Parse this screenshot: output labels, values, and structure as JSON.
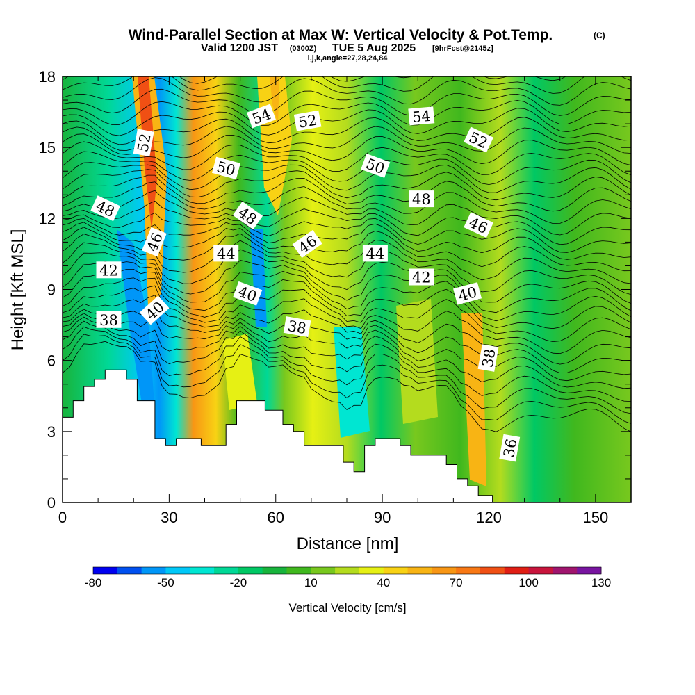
{
  "chart_data": {
    "type": "heatmap",
    "title": "Wind-Parallel Section at Max W: Vertical Velocity & Pot.Temp.",
    "title_units": "(C)",
    "subtitle_valid": "Valid 1200 JST",
    "subtitle_utc": "(0300Z)",
    "subtitle_date": "TUE 5 Aug 2025",
    "subtitle_fcst": "[9hrFcst@2145z]",
    "subtitle_indices": "i,j,k,angle=27,28,24,84",
    "xlabel": "Distance [nm]",
    "ylabel": "Height [Kft MSL]",
    "xlim": [
      0,
      160
    ],
    "ylim": [
      0,
      18
    ],
    "x_ticks": [
      "0",
      "30",
      "60",
      "90",
      "120",
      "150"
    ],
    "y_ticks": [
      "0",
      "3",
      "6",
      "9",
      "12",
      "15",
      "18"
    ],
    "colorbar": {
      "label": "Vertical Velocity [cm/s]",
      "tick_labels": [
        "-80",
        "-50",
        "-20",
        "10",
        "40",
        "70",
        "100",
        "130"
      ],
      "levels": [
        -80,
        -70,
        -60,
        -50,
        -40,
        -30,
        -20,
        -10,
        0,
        10,
        20,
        30,
        40,
        50,
        60,
        70,
        80,
        90,
        100,
        110,
        120,
        130
      ],
      "colors": [
        "#0000f0",
        "#0050f0",
        "#0096f8",
        "#00c8f8",
        "#00e6d2",
        "#00d896",
        "#00c864",
        "#18b43c",
        "#40b81e",
        "#78c81e",
        "#b4dc1e",
        "#e6f014",
        "#f8d214",
        "#f8b414",
        "#f89614",
        "#f87814",
        "#f05014",
        "#e01e14",
        "#c8143c",
        "#a0146e",
        "#7814a0"
      ]
    },
    "terrain_kft": [
      [
        0,
        3.6
      ],
      [
        3,
        3.6
      ],
      [
        3,
        4.3
      ],
      [
        6,
        4.3
      ],
      [
        6,
        4.9
      ],
      [
        9,
        4.9
      ],
      [
        9,
        5.2
      ],
      [
        12,
        5.2
      ],
      [
        12,
        5.6
      ],
      [
        18,
        5.6
      ],
      [
        18,
        5.2
      ],
      [
        21,
        5.2
      ],
      [
        21,
        4.3
      ],
      [
        26,
        4.3
      ],
      [
        26,
        2.7
      ],
      [
        29,
        2.7
      ],
      [
        29,
        2.4
      ],
      [
        32,
        2.4
      ],
      [
        32,
        2.7
      ],
      [
        39,
        2.7
      ],
      [
        39,
        2.4
      ],
      [
        46,
        2.4
      ],
      [
        46,
        3.3
      ],
      [
        49,
        3.3
      ],
      [
        49,
        4.3
      ],
      [
        57,
        4.3
      ],
      [
        57,
        3.9
      ],
      [
        62,
        3.9
      ],
      [
        62,
        3.3
      ],
      [
        65,
        3.3
      ],
      [
        65,
        3.0
      ],
      [
        68,
        3.0
      ],
      [
        68,
        2.4
      ],
      [
        79,
        2.4
      ],
      [
        79,
        1.7
      ],
      [
        82,
        1.7
      ],
      [
        82,
        1.3
      ],
      [
        85,
        1.3
      ],
      [
        85,
        2.4
      ],
      [
        88,
        2.4
      ],
      [
        88,
        2.7
      ],
      [
        95,
        2.7
      ],
      [
        95,
        2.4
      ],
      [
        98,
        2.4
      ],
      [
        98,
        2.0
      ],
      [
        108,
        2.0
      ],
      [
        108,
        1.6
      ],
      [
        111,
        1.6
      ],
      [
        111,
        1.0
      ],
      [
        114,
        1.0
      ],
      [
        114,
        0.7
      ],
      [
        117,
        0.7
      ],
      [
        117,
        0.3
      ],
      [
        121,
        0.3
      ],
      [
        121,
        0
      ],
      [
        0,
        0
      ]
    ],
    "theta_contour_labels": [
      {
        "text": "38",
        "x": 13,
        "y": 7.7,
        "rot": 0
      },
      {
        "text": "40",
        "x": 26,
        "y": 8.1,
        "rot": -42
      },
      {
        "text": "42",
        "x": 13,
        "y": 9.8,
        "rot": 0
      },
      {
        "text": "44",
        "x": 46,
        "y": 10.5,
        "rot": 0
      },
      {
        "text": "46",
        "x": 26,
        "y": 11.0,
        "rot": -68
      },
      {
        "text": "48",
        "x": 12,
        "y": 12.4,
        "rot": 25
      },
      {
        "text": "50",
        "x": 46,
        "y": 14.1,
        "rot": 15
      },
      {
        "text": "52",
        "x": 23,
        "y": 15.2,
        "rot": -80
      },
      {
        "text": "54",
        "x": 56,
        "y": 16.3,
        "rot": -20
      },
      {
        "text": "52",
        "x": 69,
        "y": 16.1,
        "rot": -10
      },
      {
        "text": "48",
        "x": 52,
        "y": 12.1,
        "rot": 35
      },
      {
        "text": "46",
        "x": 69,
        "y": 10.9,
        "rot": -35
      },
      {
        "text": "44",
        "x": 88,
        "y": 10.5,
        "rot": 0
      },
      {
        "text": "42",
        "x": 101,
        "y": 9.5,
        "rot": 0
      },
      {
        "text": "40",
        "x": 52,
        "y": 8.8,
        "rot": 20
      },
      {
        "text": "38",
        "x": 66,
        "y": 7.4,
        "rot": 10
      },
      {
        "text": "50",
        "x": 88,
        "y": 14.2,
        "rot": 20
      },
      {
        "text": "48",
        "x": 101,
        "y": 12.8,
        "rot": 0
      },
      {
        "text": "54",
        "x": 101,
        "y": 16.3,
        "rot": -5
      },
      {
        "text": "52",
        "x": 117,
        "y": 15.3,
        "rot": 25
      },
      {
        "text": "46",
        "x": 117,
        "y": 11.7,
        "rot": 25
      },
      {
        "text": "40",
        "x": 114,
        "y": 8.8,
        "rot": -15
      },
      {
        "text": "38",
        "x": 120,
        "y": 6.1,
        "rot": -80
      },
      {
        "text": "36",
        "x": 126,
        "y": 2.3,
        "rot": -80
      }
    ]
  }
}
